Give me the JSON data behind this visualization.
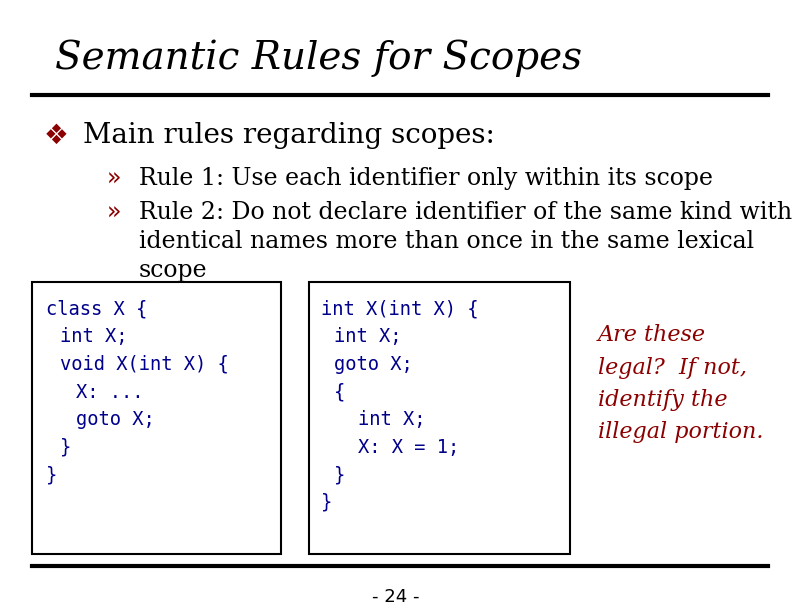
{
  "title": "Semantic Rules for Scopes",
  "title_color": "#000000",
  "title_fontsize": 28,
  "bg_color": "#ffffff",
  "bullet_color": "#8B0000",
  "bullet_symbol": "❖",
  "bullet_text": "Main rules regarding scopes:",
  "bullet_fontsize": 20,
  "sub_bullet_symbol": "»",
  "sub_bullet_color": "#8B0000",
  "sub_bullet_fontsize": 17,
  "sub_bullet1": "Rule 1: Use each identifier only within its scope",
  "sub_bullet2a": "Rule 2: Do not declare identifier of the same kind with",
  "sub_bullet2b": "identical names more than once in the same lexical",
  "sub_bullet2c": "scope",
  "code_color": "#00008B",
  "code_fontsize": 13.5,
  "question_text": "Are these\nlegal?  If not,\nidentify the\nillegal portion.",
  "question_color": "#8B0000",
  "question_fontsize": 16,
  "footer_text": "- 24 -",
  "footer_fontsize": 13,
  "footer_color": "#000000"
}
